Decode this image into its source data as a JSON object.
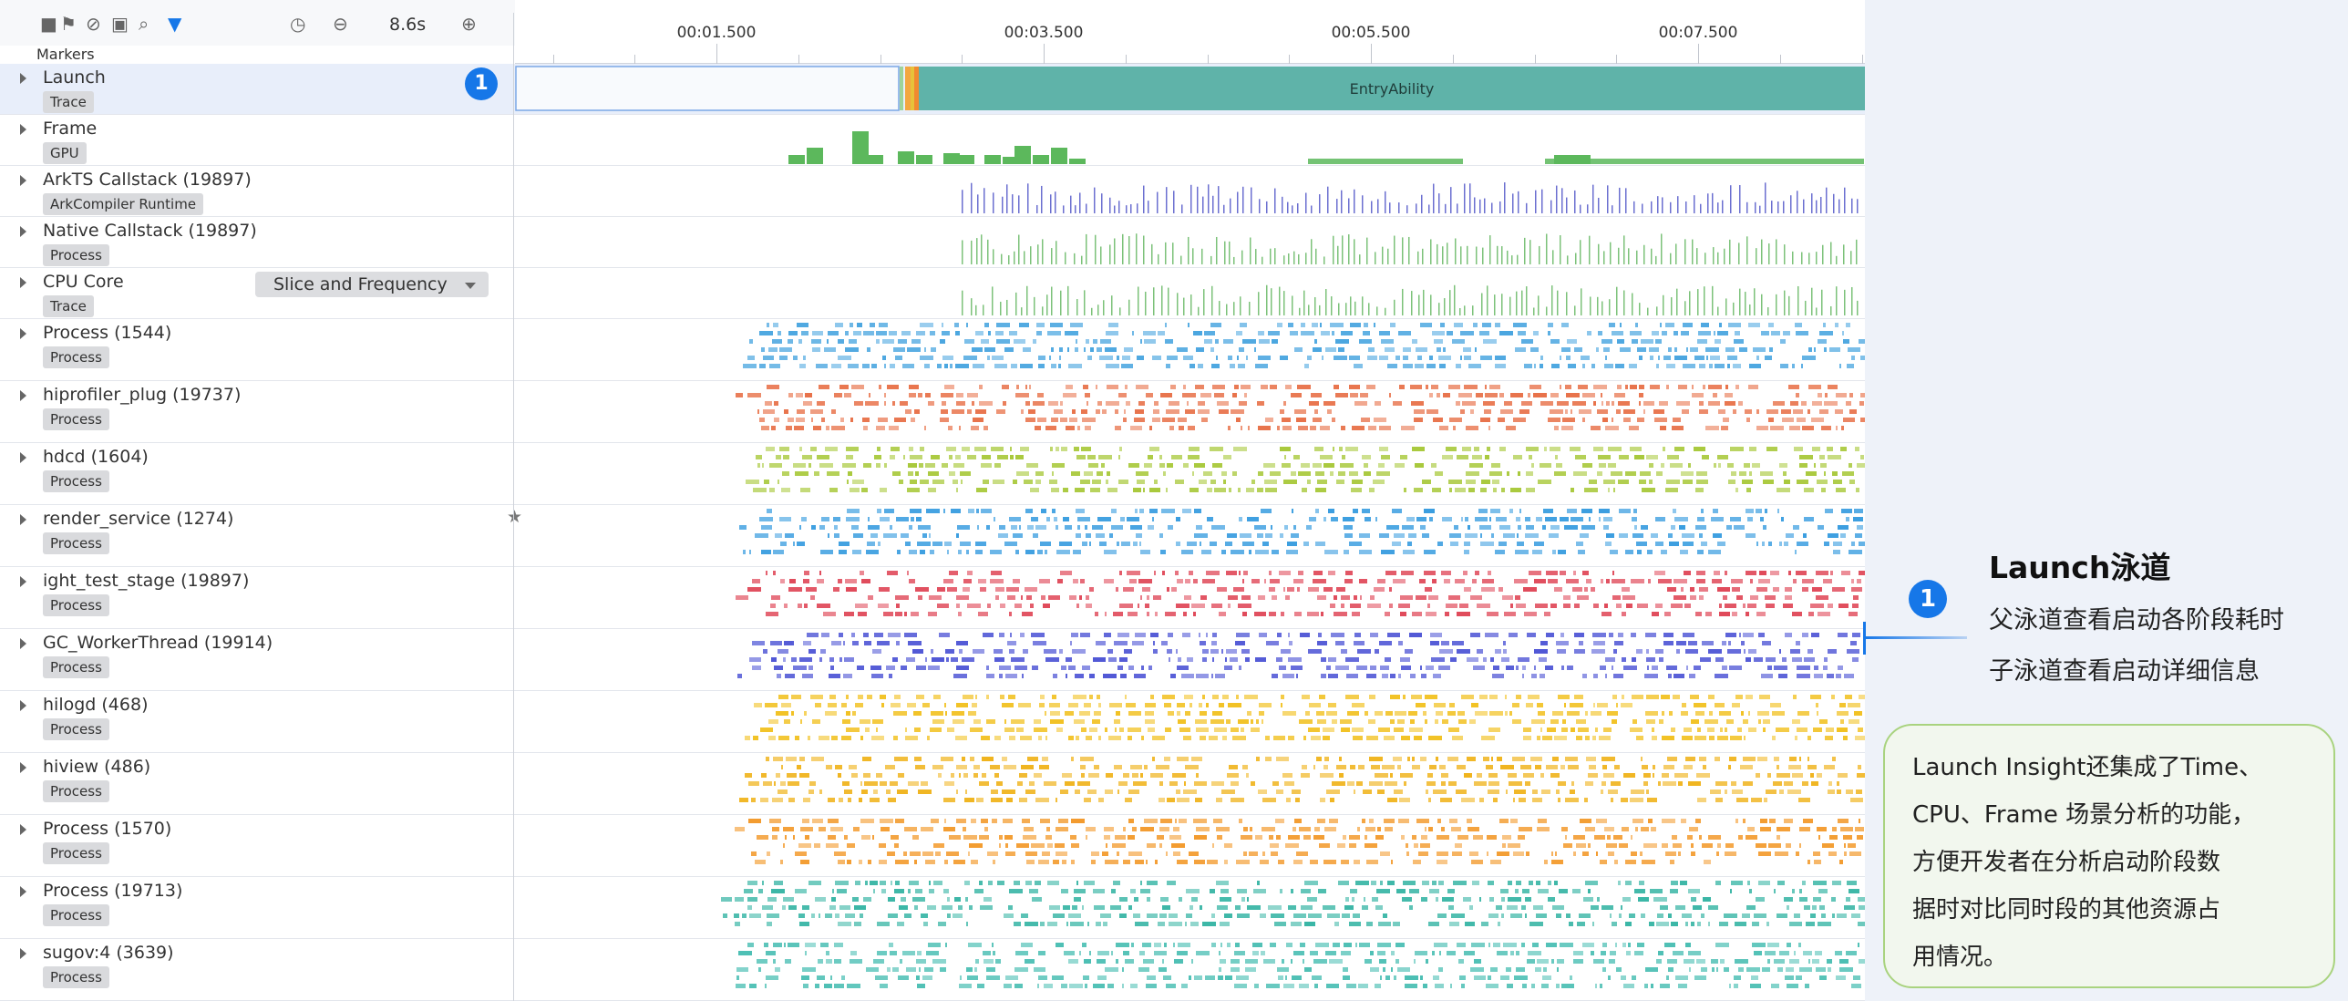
{
  "toolbar": {
    "zoom": "8.6s",
    "markers_label": "Markers",
    "icons": [
      "stop-square-icon",
      "flag-icon",
      "block-icon",
      "image-export-icon",
      "search-icon",
      "filter-icon",
      "clock-icon",
      "zoom-out-icon",
      "zoom-in-icon"
    ]
  },
  "ruler": {
    "ticks": [
      {
        "label": "00:01.500",
        "time": 1.5
      },
      {
        "label": "00:03.500",
        "time": 3.5
      },
      {
        "label": "00:05.500",
        "time": 5.5
      },
      {
        "label": "00:07.500",
        "time": 7.5
      }
    ]
  },
  "lanes": [
    {
      "id": "launch",
      "title": "Launch",
      "tag": "Trace",
      "kind": "launch"
    },
    {
      "id": "frame",
      "title": "Frame",
      "tag": "GPU",
      "kind": "frame",
      "color": "#5cb85c"
    },
    {
      "id": "arkts",
      "title": "ArkTS Callstack (19897)",
      "tag": "ArkCompiler Runtime",
      "kind": "spikes",
      "color": "#6b6fd0"
    },
    {
      "id": "native",
      "title": "Native Callstack (19897)",
      "tag": "Process",
      "kind": "spikes",
      "color": "#7cc27a"
    },
    {
      "id": "cpu",
      "title": "CPU Core",
      "tag": "Trace",
      "kind": "spikes",
      "color": "#7cc27a"
    },
    {
      "id": "p1544",
      "title": "Process (1544)",
      "tag": "Process",
      "kind": "dashes",
      "color": "#4aa6e0"
    },
    {
      "id": "hiprofiler",
      "title": "hiprofiler_plug (19737)",
      "tag": "Process",
      "kind": "dashes",
      "color": "#e8724a"
    },
    {
      "id": "hdcd",
      "title": "hdcd (1604)",
      "tag": "Process",
      "kind": "dashes",
      "color": "#a9c93c"
    },
    {
      "id": "render",
      "title": "render_service (1274)",
      "tag": "Process",
      "kind": "dashes",
      "color": "#3b9ee0"
    },
    {
      "id": "ight",
      "title": "ight_test_stage (19897)",
      "tag": "Process",
      "kind": "dashes",
      "color": "#e04a5a"
    },
    {
      "id": "gcworker",
      "title": "GC_WorkerThread (19914)",
      "tag": "Process",
      "kind": "dashes",
      "color": "#5158d6"
    },
    {
      "id": "hilogd",
      "title": "hilogd (468)",
      "tag": "Process",
      "kind": "dashes",
      "color": "#f2c224"
    },
    {
      "id": "hiview",
      "title": "hiview (486)",
      "tag": "Process",
      "kind": "dashes",
      "color": "#f0b41e"
    },
    {
      "id": "p1570",
      "title": "Process (1570)",
      "tag": "Process",
      "kind": "dashes",
      "color": "#f39b2e"
    },
    {
      "id": "p19713",
      "title": "Process (19713)",
      "tag": "Process",
      "kind": "dashes",
      "color": "#3ab6a6"
    },
    {
      "id": "sugov",
      "title": "sugov:4 (3639)",
      "tag": "Process",
      "kind": "dashes",
      "color": "#4cbfb4"
    }
  ],
  "cpu_dropdown": "Slice and Frequency",
  "launch_slice": {
    "label": "EntryAbility",
    "color": "#5fb3a9"
  },
  "badge_number": "1",
  "annotation": {
    "title": "Launch泳道",
    "lines": [
      "父泳道查看启动各阶段耗时",
      "子泳道查看启动详细信息"
    ],
    "info": [
      "Launch Insight还集成了Time、",
      "CPU、Frame 场景分析的功能，",
      "方便开发者在分析启动阶段数",
      "据时对比同时段的其他资源占",
      "用情况。"
    ]
  }
}
